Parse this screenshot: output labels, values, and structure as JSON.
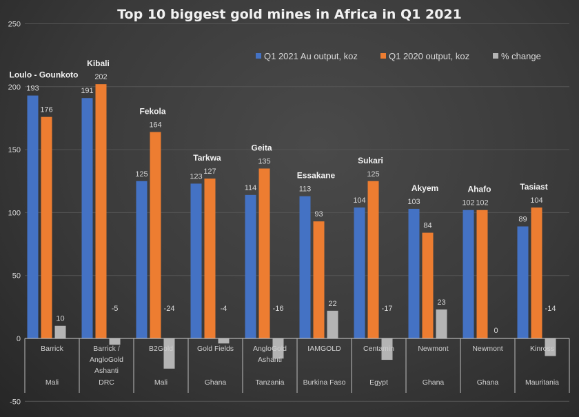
{
  "chart_data": {
    "type": "bar",
    "title": "Top 10 biggest gold mines in Africa in Q1 2021",
    "ylim": [
      -50,
      250
    ],
    "yticks": [
      "250",
      "200",
      "150",
      "100",
      "50",
      "0",
      "-50"
    ],
    "ytick_values": [
      250,
      200,
      150,
      100,
      50,
      0,
      -50
    ],
    "legend_position": "top-right",
    "mines": [
      "Loulo - Gounkoto",
      "Kibali",
      "Fekola",
      "Tarkwa",
      "Geita",
      "Essakane",
      "Sukari",
      "Akyem",
      "Ahafo",
      "Tasiast"
    ],
    "categories": [
      {
        "company": [
          "Barrick"
        ],
        "country": "Mali"
      },
      {
        "company": [
          "Barrick /",
          "AngloGold",
          "Ashanti"
        ],
        "country": "DRC"
      },
      {
        "company": [
          "B2Gold"
        ],
        "country": "Mali"
      },
      {
        "company": [
          "Gold Fields"
        ],
        "country": "Ghana"
      },
      {
        "company": [
          "AngloGold",
          "Ashanti"
        ],
        "country": "Tanzania"
      },
      {
        "company": [
          "IAMGOLD"
        ],
        "country": "Burkina Faso"
      },
      {
        "company": [
          "Centamin"
        ],
        "country": "Egypt"
      },
      {
        "company": [
          "Newmont"
        ],
        "country": "Ghana"
      },
      {
        "company": [
          "Newmont"
        ],
        "country": "Ghana"
      },
      {
        "company": [
          "Kinross"
        ],
        "country": "Mauritania"
      }
    ],
    "series": [
      {
        "name": "Q1 2021 Au output, koz",
        "color": "#4472c4",
        "values": [
          193,
          191,
          125,
          123,
          114,
          113,
          104,
          103,
          102,
          89
        ]
      },
      {
        "name": "Q1 2020 output, koz",
        "color": "#ed7d31",
        "values": [
          176,
          202,
          164,
          127,
          135,
          93,
          125,
          84,
          102,
          104
        ]
      },
      {
        "name": "% change",
        "color": "#b4b4b4",
        "values": [
          10,
          -5,
          -24,
          -4,
          -16,
          22,
          -17,
          23,
          0,
          -14
        ]
      }
    ]
  }
}
